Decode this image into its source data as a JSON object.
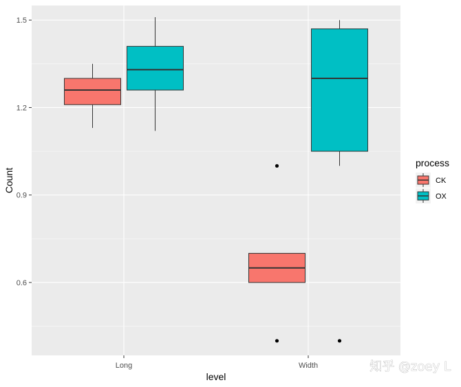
{
  "chart_data": {
    "type": "boxplot",
    "title": "",
    "xlabel": "level",
    "ylabel": "Count",
    "categories": [
      "Long",
      "Width"
    ],
    "ylim": [
      0.35,
      1.55
    ],
    "yticks": [
      0.6,
      0.9,
      1.2,
      1.5
    ],
    "ytick_labels": [
      "0.6",
      "0.9",
      "1.2",
      "1.5"
    ],
    "grid": true,
    "legend": {
      "title": "process",
      "position": "right",
      "entries": [
        "CK",
        "OX"
      ]
    },
    "series": [
      {
        "name": "CK",
        "color": "#F8766D",
        "boxes": [
          {
            "category": "Long",
            "whisker_low": 1.13,
            "q1": 1.21,
            "median": 1.26,
            "q3": 1.3,
            "whisker_high": 1.35,
            "outliers": []
          },
          {
            "category": "Width",
            "whisker_low": 0.6,
            "q1": 0.6,
            "median": 0.65,
            "q3": 0.7,
            "whisker_high": 0.7,
            "outliers": [
              1.0,
              0.4
            ]
          }
        ]
      },
      {
        "name": "OX",
        "color": "#00BFC4",
        "boxes": [
          {
            "category": "Long",
            "whisker_low": 1.12,
            "q1": 1.26,
            "median": 1.33,
            "q3": 1.41,
            "whisker_high": 1.51,
            "outliers": []
          },
          {
            "category": "Width",
            "whisker_low": 1.0,
            "q1": 1.05,
            "median": 1.3,
            "q3": 1.47,
            "whisker_high": 1.5,
            "outliers": [
              0.4
            ]
          }
        ]
      }
    ]
  },
  "watermark": "知乎 @zoey L",
  "colors": {
    "panel_background": "#EBEBEB",
    "grid_major": "#FFFFFF",
    "grid_minor": "#F5F5F5",
    "tick_text": "#4D4D4D"
  }
}
